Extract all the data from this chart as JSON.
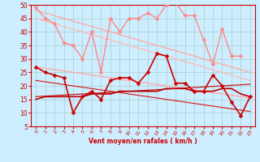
{
  "background_color": "#cceeff",
  "grid_color": "#aacccc",
  "xlabel": "Vent moyen/en rafales ( km/h )",
  "ylim": [
    5,
    50
  ],
  "xlim": [
    -0.5,
    23.5
  ],
  "yticks": [
    5,
    10,
    15,
    20,
    25,
    30,
    35,
    40,
    45,
    50
  ],
  "x": [
    0,
    1,
    2,
    3,
    4,
    5,
    6,
    7,
    8,
    9,
    10,
    11,
    12,
    13,
    14,
    15,
    16,
    17,
    18,
    19,
    20,
    21,
    22,
    23
  ],
  "lines": [
    {
      "y": [
        49,
        45,
        43,
        36,
        35,
        30,
        40,
        25,
        45,
        40,
        45,
        45,
        47,
        45,
        50,
        51,
        46,
        46,
        37,
        28,
        41,
        31,
        31,
        null
      ],
      "color": "#ff8888",
      "lw": 1.0,
      "marker": "D",
      "ms": 2.5,
      "zorder": 3
    },
    {
      "y": [
        48,
        47,
        46,
        45,
        44,
        43,
        42,
        41,
        40,
        39,
        38,
        37,
        36,
        35,
        34,
        33,
        32,
        31,
        30,
        29,
        28,
        27,
        26,
        25
      ],
      "color": "#ffaaaa",
      "lw": 1.0,
      "marker": null,
      "ms": 0,
      "zorder": 2
    },
    {
      "y": [
        45,
        44,
        43,
        42,
        41,
        40,
        39,
        38,
        37,
        36,
        35,
        34,
        33,
        32,
        31,
        30,
        29,
        28,
        27,
        26,
        25,
        24,
        23,
        22
      ],
      "color": "#ffbbbb",
      "lw": 1.0,
      "marker": null,
      "ms": 0,
      "zorder": 2
    },
    {
      "y": [
        27,
        26.5,
        26,
        25.5,
        25,
        24.5,
        24,
        23.5,
        23,
        22.5,
        22,
        21.5,
        21,
        20.5,
        20,
        19.5,
        19,
        18.5,
        18,
        17.5,
        17,
        16.5,
        16,
        15.5
      ],
      "color": "#ffaaaa",
      "lw": 1.0,
      "marker": null,
      "ms": 0,
      "zorder": 2
    },
    {
      "y": [
        27,
        25,
        24,
        23,
        10,
        16,
        18,
        15,
        22,
        23,
        23,
        21,
        25,
        32,
        31,
        21,
        21,
        18,
        18,
        24,
        20,
        14,
        9,
        16
      ],
      "color": "#cc0000",
      "lw": 1.2,
      "marker": "D",
      "ms": 2.5,
      "zorder": 4
    },
    {
      "y": [
        22,
        21.5,
        21,
        20.5,
        20,
        19.5,
        19,
        18.5,
        18,
        17.5,
        17,
        16.5,
        16,
        15.5,
        15,
        14.5,
        14,
        13.5,
        13,
        12.5,
        12,
        11.5,
        11,
        10.5
      ],
      "color": "#dd1111",
      "lw": 0.8,
      "marker": null,
      "ms": 0,
      "zorder": 2
    },
    {
      "y": [
        15,
        16,
        16,
        16,
        16,
        16,
        17,
        17,
        17,
        18,
        18,
        18,
        18,
        18,
        19,
        19,
        19,
        18,
        18,
        18,
        19,
        19,
        17,
        16
      ],
      "color": "#bb0000",
      "lw": 1.2,
      "marker": null,
      "ms": 0,
      "zorder": 3
    },
    {
      "y": [
        16,
        16.2,
        16.4,
        16.6,
        16.8,
        17,
        17.2,
        17.4,
        17.6,
        17.8,
        18,
        18.2,
        18.4,
        18.6,
        18.8,
        19,
        19.2,
        19.4,
        19.6,
        19.8,
        20,
        20.2,
        20.4,
        20.6
      ],
      "color": "#cc0000",
      "lw": 0.8,
      "marker": null,
      "ms": 0,
      "zorder": 2
    }
  ]
}
